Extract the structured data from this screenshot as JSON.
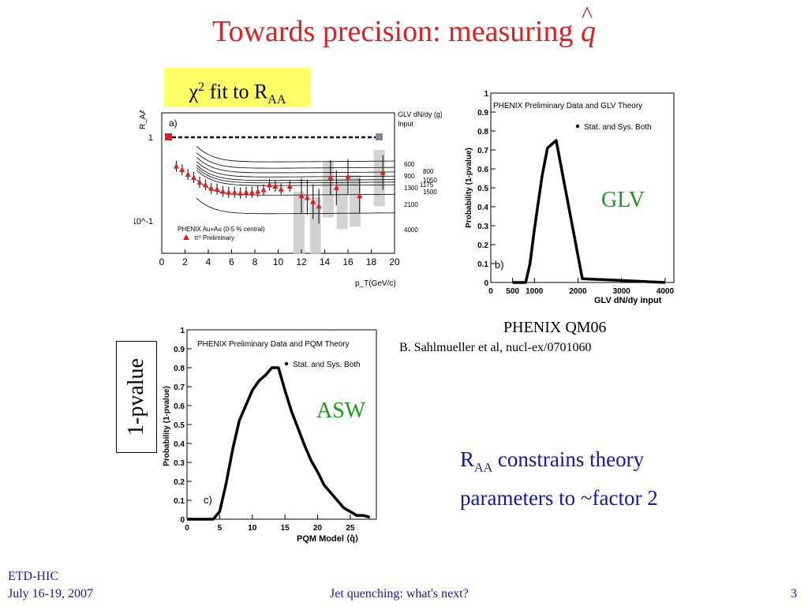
{
  "title": {
    "text": "Towards precision: measuring",
    "symbol": "q",
    "hat": "^"
  },
  "fit_box": {
    "chi": "χ",
    "sup": "2",
    "mid": " fit to R",
    "sub": "AA"
  },
  "glv_label": "GLV",
  "asw_label": "ASW",
  "pvalue_label": "1-pvalue",
  "phenix_label": "PHENIX QM06",
  "reference": "B. Sahlmueller et al, nucl-ex/0701060",
  "constraint": {
    "r": "R",
    "sub": "AA",
    "line1_rest": " constrains theory",
    "line2": "parameters to ~factor 2"
  },
  "footer": {
    "conf": "ETD-HIC",
    "date": "July 16-19, 2007",
    "talk": "Jet quenching: what's next?",
    "page": "3"
  },
  "chart_data": [
    {
      "type": "scatter",
      "panel": "a)",
      "ylabel": "R_AA",
      "xlabel": "p_T(GeV/c)",
      "xlim": [
        0,
        20
      ],
      "ylog": true,
      "ytick_labels": [
        "1",
        "10^-1"
      ],
      "xticks": [
        0,
        2,
        4,
        6,
        8,
        10,
        12,
        14,
        16,
        18,
        20
      ],
      "legend": {
        "entry1": "PHENIX Au+Au (0-5 % central)",
        "entry2": "π⁰ Preliminary"
      },
      "input_label_line1": "GLV dN/dy (g)",
      "input_label_line2": "Input",
      "curve_labels": [
        "600",
        "800",
        "900",
        "1050",
        "1175",
        "1300",
        "1500",
        "2100",
        "4000"
      ],
      "points": [
        {
          "x": 1.25,
          "y": 0.45
        },
        {
          "x": 1.75,
          "y": 0.41
        },
        {
          "x": 2.25,
          "y": 0.36
        },
        {
          "x": 2.75,
          "y": 0.33
        },
        {
          "x": 3.25,
          "y": 0.29
        },
        {
          "x": 3.75,
          "y": 0.27
        },
        {
          "x": 4.25,
          "y": 0.245
        },
        {
          "x": 4.75,
          "y": 0.24
        },
        {
          "x": 5.25,
          "y": 0.225
        },
        {
          "x": 5.75,
          "y": 0.22
        },
        {
          "x": 6.25,
          "y": 0.22
        },
        {
          "x": 6.75,
          "y": 0.215
        },
        {
          "x": 7.25,
          "y": 0.22
        },
        {
          "x": 7.75,
          "y": 0.22
        },
        {
          "x": 8.25,
          "y": 0.225
        },
        {
          "x": 8.75,
          "y": 0.235
        },
        {
          "x": 9.25,
          "y": 0.27
        },
        {
          "x": 9.75,
          "y": 0.26
        },
        {
          "x": 10.25,
          "y": 0.24
        },
        {
          "x": 11.0,
          "y": 0.26
        },
        {
          "x": 12.0,
          "y": 0.2
        },
        {
          "x": 12.5,
          "y": 0.19
        },
        {
          "x": 13.0,
          "y": 0.17
        },
        {
          "x": 13.5,
          "y": 0.15
        },
        {
          "x": 14.5,
          "y": 0.33
        },
        {
          "x": 15.0,
          "y": 0.25
        },
        {
          "x": 16.0,
          "y": 0.34
        },
        {
          "x": 17.0,
          "y": 0.2
        },
        {
          "x": 19.0,
          "y": 0.38
        }
      ]
    },
    {
      "type": "line",
      "panel": "b)",
      "title": "PHENIX Preliminary Data and GLV Theory",
      "legend": "Stat. and Sys. Both",
      "xlabel": "GLV dN/dy input",
      "ylabel": "Probability (1-pvalue)",
      "xlim": [
        0,
        4200
      ],
      "ylim": [
        0,
        1
      ],
      "xtick_labels": [
        "0",
        "500",
        "1000",
        "2000",
        "3000",
        "4000"
      ],
      "ytick_labels": [
        "0",
        "0.1",
        "0.2",
        "0.3",
        "0.4",
        "0.5",
        "0.6",
        "0.7",
        "0.8",
        "0.9",
        "1"
      ],
      "x": [
        500,
        600,
        800,
        900,
        1000,
        1050,
        1175,
        1300,
        1500,
        2100,
        4000
      ],
      "y": [
        0.0,
        0.0,
        0.0,
        0.1,
        0.28,
        0.36,
        0.56,
        0.71,
        0.75,
        0.02,
        0.0
      ]
    },
    {
      "type": "line",
      "panel": "c)",
      "title": "PHENIX Preliminary Data and PQM Theory",
      "legend": "Stat. and Sys. Both",
      "xlabel": "PQM Model ⟨q̂⟩",
      "ylabel": "Probability (1-pvalue)",
      "xlim": [
        0,
        29
      ],
      "ylim": [
        0,
        1
      ],
      "xtick_labels": [
        "0",
        "5",
        "10",
        "15",
        "20",
        "25"
      ],
      "ytick_labels": [
        "0",
        "0.1",
        "0.2",
        "0.3",
        "0.4",
        "0.5",
        "0.6",
        "0.7",
        "0.8",
        "0.9",
        "1"
      ],
      "x": [
        0,
        2,
        4,
        5,
        6,
        7,
        8,
        9,
        10,
        11,
        12,
        13,
        14,
        15,
        16,
        17,
        18,
        19,
        20,
        21,
        22,
        23,
        24,
        25,
        26,
        27,
        28
      ],
      "y": [
        0.0,
        0.0,
        0.0,
        0.04,
        0.19,
        0.37,
        0.52,
        0.6,
        0.68,
        0.73,
        0.76,
        0.8,
        0.8,
        0.68,
        0.57,
        0.48,
        0.39,
        0.31,
        0.25,
        0.18,
        0.14,
        0.1,
        0.06,
        0.04,
        0.02,
        0.02,
        0.01
      ]
    }
  ]
}
